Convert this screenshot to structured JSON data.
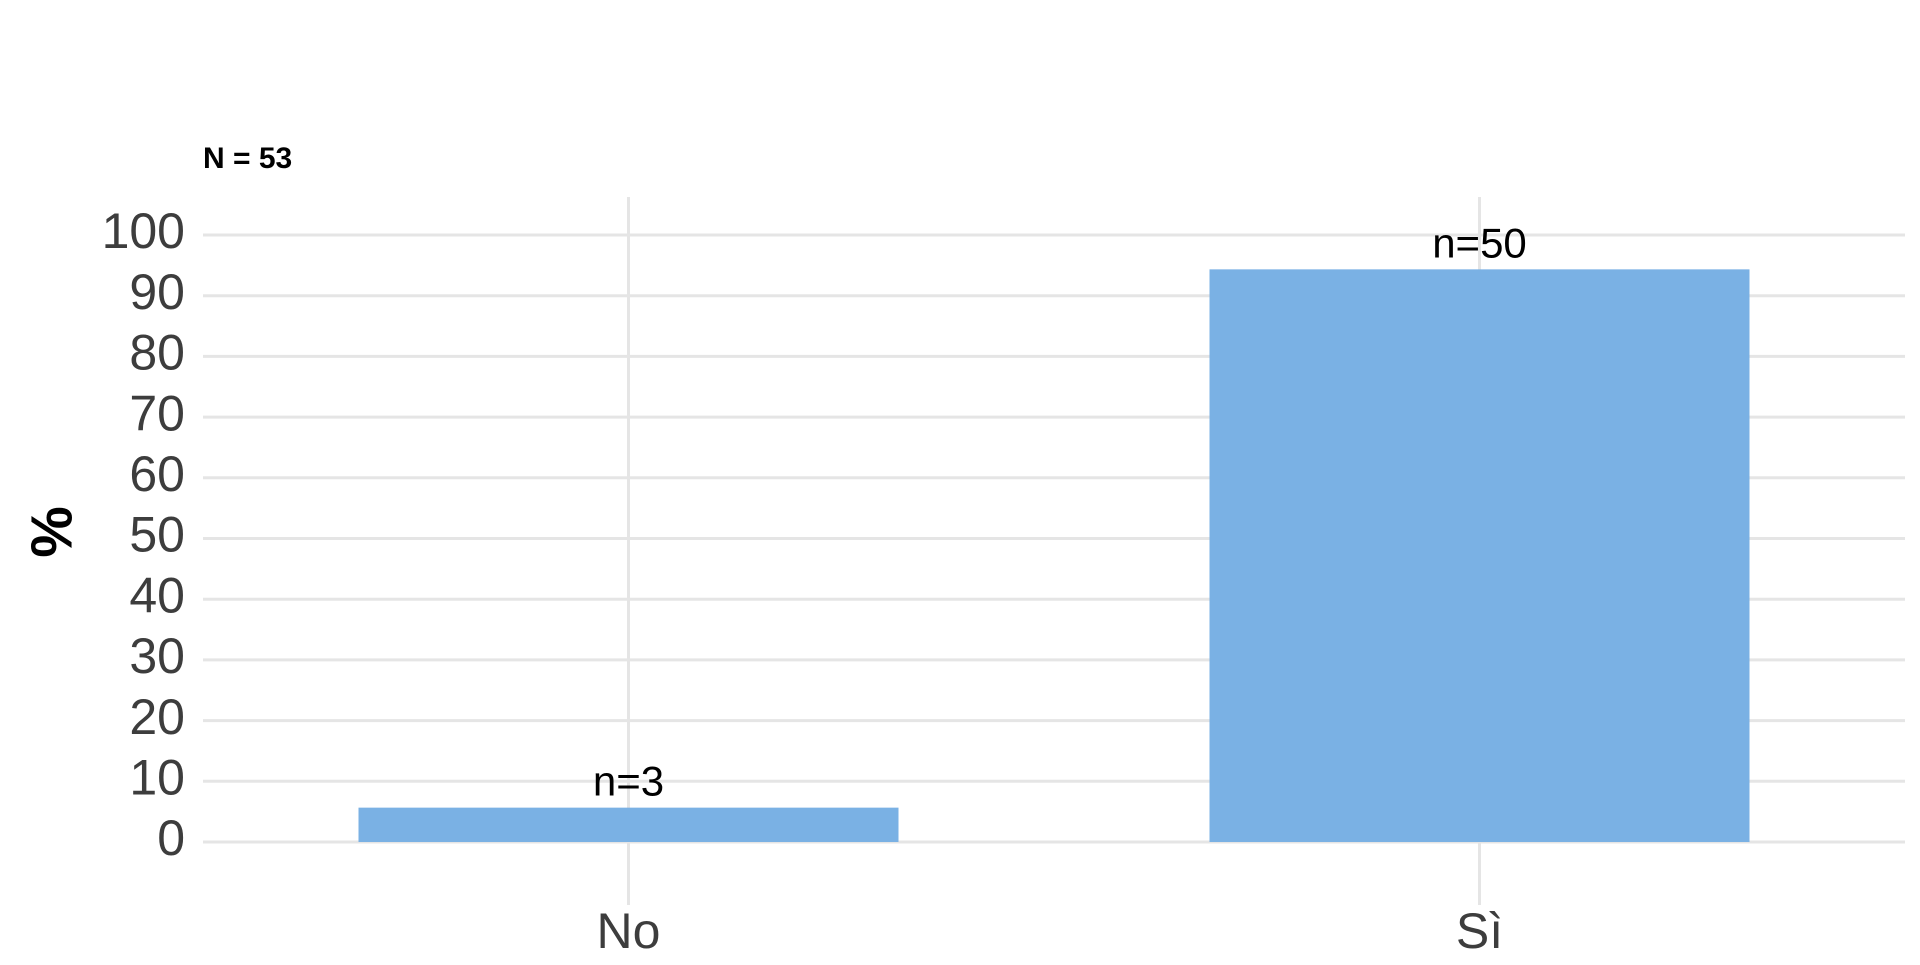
{
  "chart_data": {
    "type": "bar",
    "caption": "N = 53",
    "ylabel": "%",
    "xlabel": "",
    "categories": [
      "No",
      "Sì"
    ],
    "values": [
      5.66,
      94.34
    ],
    "bar_labels": [
      "n=3",
      "n=50"
    ],
    "ylim": [
      0,
      100
    ],
    "yticks": [
      0,
      10,
      20,
      30,
      40,
      50,
      60,
      70,
      80,
      90,
      100
    ],
    "grid": true,
    "legend": "none",
    "colors": {
      "bar": "#7ab1e4",
      "grid": "#e5e5e5",
      "tick_label": "#3d3d3d",
      "data_label": "#000000"
    }
  }
}
